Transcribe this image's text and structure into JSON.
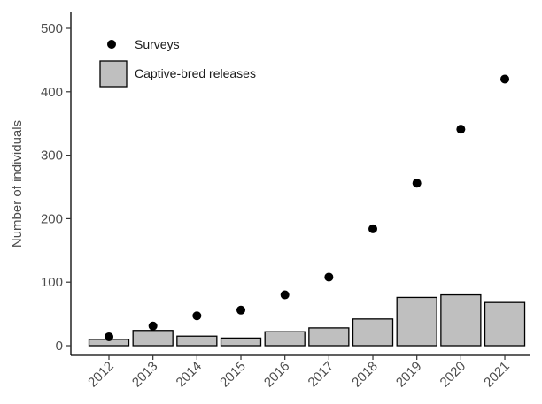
{
  "chart_data": {
    "type": "bar",
    "ylabel": "Number of individuals",
    "xlabel": "",
    "title": "",
    "categories": [
      "2012",
      "2013",
      "2014",
      "2015",
      "2016",
      "2017",
      "2018",
      "2019",
      "2020",
      "2021"
    ],
    "series": [
      {
        "name": "Captive-bred releases",
        "type": "bar",
        "values": [
          10,
          24,
          15,
          12,
          22,
          28,
          42,
          76,
          80,
          68
        ],
        "color": "#bfbfbf"
      },
      {
        "name": "Surveys",
        "type": "scatter",
        "values": [
          14,
          31,
          47,
          56,
          80,
          108,
          184,
          256,
          341,
          420
        ],
        "color": "#000000"
      }
    ],
    "ylim": [
      0,
      520
    ],
    "yticks": [
      0,
      100,
      200,
      300,
      400,
      500
    ],
    "legend_position": "top-left",
    "grid": false
  }
}
